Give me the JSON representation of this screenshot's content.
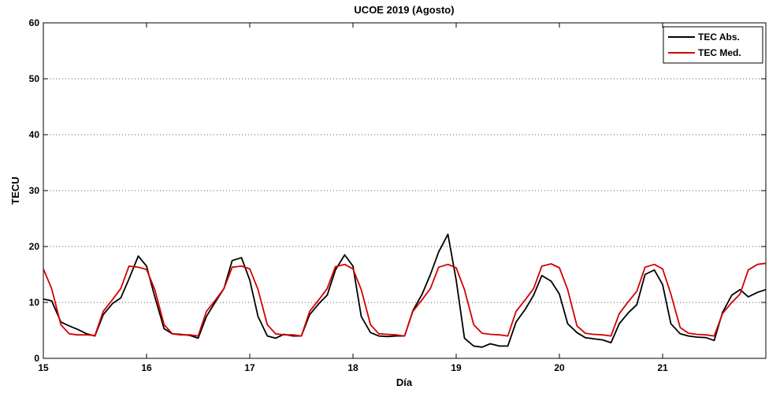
{
  "chart_data": {
    "type": "line",
    "title": "UCOE 2019 (Agosto)",
    "xlabel": "Día",
    "ylabel": "TECU",
    "xlim": [
      15,
      22
    ],
    "ylim": [
      0,
      60
    ],
    "x_ticks": [
      15,
      16,
      17,
      18,
      19,
      20,
      21
    ],
    "x_tick_labels": [
      "15",
      "16",
      "17",
      "18",
      "19",
      "20",
      "21"
    ],
    "y_ticks": [
      0,
      10,
      20,
      30,
      40,
      50,
      60
    ],
    "y_tick_labels": [
      "0",
      "10",
      "20",
      "30",
      "40",
      "50",
      "60"
    ],
    "grid": "horizontal dotted",
    "legend_position": "top-right",
    "series": [
      {
        "name": "TEC Abs.",
        "color": "#000000",
        "points": [
          [
            15.0,
            10.6
          ],
          [
            15.08,
            10.3
          ],
          [
            15.17,
            6.5
          ],
          [
            15.25,
            5.8
          ],
          [
            15.33,
            5.2
          ],
          [
            15.42,
            4.4
          ],
          [
            15.5,
            4.0
          ],
          [
            15.58,
            7.8
          ],
          [
            15.67,
            9.8
          ],
          [
            15.75,
            10.8
          ],
          [
            15.83,
            14.2
          ],
          [
            15.92,
            18.3
          ],
          [
            16.0,
            16.5
          ],
          [
            16.08,
            11.0
          ],
          [
            16.17,
            5.3
          ],
          [
            16.25,
            4.4
          ],
          [
            16.33,
            4.3
          ],
          [
            16.42,
            4.1
          ],
          [
            16.5,
            3.6
          ],
          [
            16.58,
            7.5
          ],
          [
            16.67,
            10.2
          ],
          [
            16.75,
            12.5
          ],
          [
            16.83,
            17.5
          ],
          [
            16.92,
            18.0
          ],
          [
            17.0,
            14.0
          ],
          [
            17.08,
            7.5
          ],
          [
            17.17,
            4.0
          ],
          [
            17.25,
            3.6
          ],
          [
            17.33,
            4.3
          ],
          [
            17.42,
            4.0
          ],
          [
            17.5,
            4.0
          ],
          [
            17.58,
            7.8
          ],
          [
            17.67,
            9.8
          ],
          [
            17.75,
            11.3
          ],
          [
            17.83,
            15.8
          ],
          [
            17.92,
            18.5
          ],
          [
            18.0,
            16.5
          ],
          [
            18.08,
            7.5
          ],
          [
            18.17,
            4.6
          ],
          [
            18.25,
            4.0
          ],
          [
            18.33,
            3.9
          ],
          [
            18.42,
            4.0
          ],
          [
            18.5,
            4.0
          ],
          [
            18.58,
            8.5
          ],
          [
            18.67,
            11.5
          ],
          [
            18.75,
            15.0
          ],
          [
            18.83,
            19.0
          ],
          [
            18.92,
            22.2
          ],
          [
            19.0,
            14.0
          ],
          [
            19.08,
            3.6
          ],
          [
            19.17,
            2.2
          ],
          [
            19.25,
            2.0
          ],
          [
            19.33,
            2.6
          ],
          [
            19.42,
            2.2
          ],
          [
            19.5,
            2.2
          ],
          [
            19.58,
            6.5
          ],
          [
            19.67,
            8.8
          ],
          [
            19.75,
            11.3
          ],
          [
            19.83,
            14.8
          ],
          [
            19.92,
            13.8
          ],
          [
            20.0,
            11.5
          ],
          [
            20.08,
            6.2
          ],
          [
            20.17,
            4.6
          ],
          [
            20.25,
            3.7
          ],
          [
            20.33,
            3.5
          ],
          [
            20.42,
            3.3
          ],
          [
            20.5,
            2.8
          ],
          [
            20.58,
            6.2
          ],
          [
            20.67,
            8.2
          ],
          [
            20.75,
            9.6
          ],
          [
            20.83,
            15.0
          ],
          [
            20.92,
            15.8
          ],
          [
            21.0,
            13.2
          ],
          [
            21.08,
            6.2
          ],
          [
            21.17,
            4.4
          ],
          [
            21.25,
            4.0
          ],
          [
            21.33,
            3.8
          ],
          [
            21.42,
            3.7
          ],
          [
            21.5,
            3.2
          ],
          [
            21.58,
            8.2
          ],
          [
            21.67,
            11.3
          ],
          [
            21.75,
            12.3
          ],
          [
            21.83,
            11.0
          ],
          [
            21.92,
            11.8
          ],
          [
            22.0,
            12.3
          ]
        ]
      },
      {
        "name": "TEC Med.",
        "color": "#d40000",
        "points": [
          [
            15.0,
            16.0
          ],
          [
            15.08,
            12.5
          ],
          [
            15.17,
            6.0
          ],
          [
            15.25,
            4.4
          ],
          [
            15.33,
            4.2
          ],
          [
            15.42,
            4.2
          ],
          [
            15.5,
            4.1
          ],
          [
            15.58,
            8.4
          ],
          [
            15.67,
            10.5
          ],
          [
            15.75,
            12.5
          ],
          [
            15.83,
            16.5
          ],
          [
            15.92,
            16.3
          ],
          [
            16.0,
            15.9
          ],
          [
            16.08,
            12.3
          ],
          [
            16.17,
            6.0
          ],
          [
            16.25,
            4.4
          ],
          [
            16.33,
            4.2
          ],
          [
            16.42,
            4.2
          ],
          [
            16.5,
            4.0
          ],
          [
            16.58,
            8.4
          ],
          [
            16.67,
            10.5
          ],
          [
            16.75,
            12.5
          ],
          [
            16.83,
            16.3
          ],
          [
            16.92,
            16.5
          ],
          [
            17.0,
            16.0
          ],
          [
            17.08,
            12.3
          ],
          [
            17.17,
            6.0
          ],
          [
            17.25,
            4.4
          ],
          [
            17.33,
            4.2
          ],
          [
            17.42,
            4.2
          ],
          [
            17.5,
            4.0
          ],
          [
            17.58,
            8.4
          ],
          [
            17.67,
            10.5
          ],
          [
            17.75,
            12.5
          ],
          [
            17.83,
            16.4
          ],
          [
            17.92,
            16.8
          ],
          [
            18.0,
            16.0
          ],
          [
            18.08,
            12.3
          ],
          [
            18.17,
            6.0
          ],
          [
            18.25,
            4.4
          ],
          [
            18.33,
            4.3
          ],
          [
            18.42,
            4.2
          ],
          [
            18.5,
            4.0
          ],
          [
            18.58,
            8.4
          ],
          [
            18.67,
            10.5
          ],
          [
            18.75,
            12.5
          ],
          [
            18.83,
            16.3
          ],
          [
            18.92,
            16.8
          ],
          [
            19.0,
            16.2
          ],
          [
            19.08,
            12.3
          ],
          [
            19.17,
            6.0
          ],
          [
            19.25,
            4.5
          ],
          [
            19.33,
            4.3
          ],
          [
            19.42,
            4.2
          ],
          [
            19.5,
            4.0
          ],
          [
            19.58,
            8.4
          ],
          [
            19.67,
            10.5
          ],
          [
            19.75,
            12.5
          ],
          [
            19.83,
            16.5
          ],
          [
            19.92,
            16.9
          ],
          [
            20.0,
            16.2
          ],
          [
            20.08,
            12.3
          ],
          [
            20.17,
            5.8
          ],
          [
            20.25,
            4.5
          ],
          [
            20.33,
            4.3
          ],
          [
            20.42,
            4.2
          ],
          [
            20.5,
            4.0
          ],
          [
            20.58,
            8.0
          ],
          [
            20.67,
            10.2
          ],
          [
            20.75,
            12.0
          ],
          [
            20.83,
            16.3
          ],
          [
            20.92,
            16.8
          ],
          [
            21.0,
            16.0
          ],
          [
            21.08,
            11.5
          ],
          [
            21.17,
            5.5
          ],
          [
            21.25,
            4.5
          ],
          [
            21.33,
            4.3
          ],
          [
            21.42,
            4.2
          ],
          [
            21.5,
            4.0
          ],
          [
            21.58,
            8.0
          ],
          [
            21.67,
            10.0
          ],
          [
            21.75,
            11.5
          ],
          [
            21.83,
            15.8
          ],
          [
            21.92,
            16.8
          ],
          [
            22.0,
            17.0
          ]
        ]
      }
    ]
  }
}
